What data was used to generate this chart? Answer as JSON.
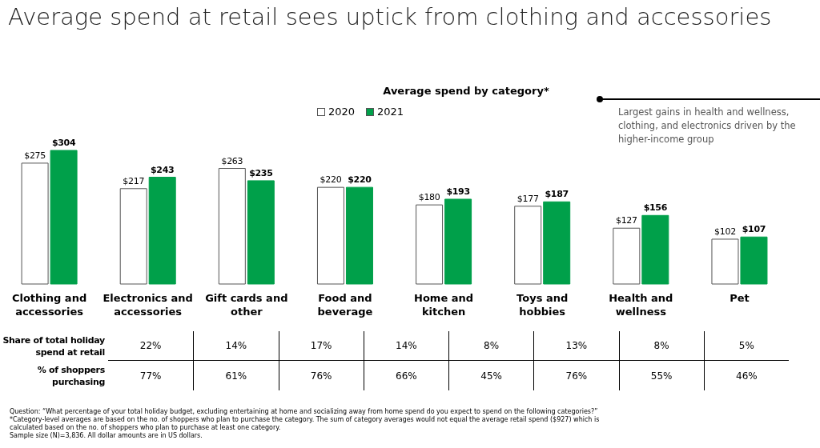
{
  "chart_data": {
    "type": "bar",
    "title": "Average spend at retail sees uptick from clothing and accessories",
    "subtitle": "Average spend by category*",
    "categories": [
      "Clothing and accessories",
      "Electronics and accessories",
      "Gift cards and other",
      "Food and beverage",
      "Home and kitchen",
      "Toys and hobbies",
      "Health and wellness",
      "Pet"
    ],
    "series": [
      {
        "name": "2020",
        "color": "#ffffff",
        "values": [
          275,
          217,
          263,
          220,
          180,
          177,
          127,
          102
        ],
        "value_labels": [
          "$275",
          "$217",
          "$263",
          "$220",
          "$180",
          "$177",
          "$127",
          "$102"
        ]
      },
      {
        "name": "2021",
        "color": "#00a04a",
        "values": [
          304,
          243,
          235,
          220,
          193,
          187,
          156,
          107
        ],
        "value_labels": [
          "$304",
          "$243",
          "$235",
          "$220",
          "$193",
          "$187",
          "$156",
          "$107"
        ]
      }
    ],
    "legend": "top",
    "annotations": [
      "Largest gains in health and wellness, clothing, and electronics driven by the higher-income group",
      "Share of total holiday spend at retail",
      "22%",
      "14%",
      "17%",
      "14%",
      "8%",
      "13%",
      "8%",
      "5%",
      "% of shoppers purchasing",
      "77%",
      "61%",
      "76%",
      "66%",
      "45%",
      "76%",
      "55%",
      "46%",
      "Question: “What percentage of your total holiday budget, excluding entertaining at home and socializing away from home spend do you expect to spend on the following categories?”",
      "*Category-level averages are based on the no. of shoppers who plan to purchase the category. The sum of category averages would not equal the average retail spend ($927) which is calculated based on the no. of shoppers who plan to purchase at least one category.",
      "Sample size (N)=3,836. All dollar amounts are in US dollars."
    ]
  }
}
